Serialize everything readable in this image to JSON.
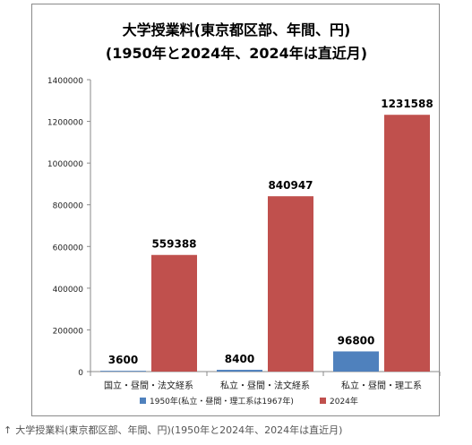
{
  "chart_data": {
    "type": "bar",
    "title": "大学授業料(東京都区部、年間、円)",
    "subtitle": "(1950年と2024年、2024年は直近月)",
    "categories": [
      "国立・昼間・法文経系",
      "私立・昼間・法文経系",
      "私立・昼間・理工系"
    ],
    "series": [
      {
        "name": "1950年(私立・昼間・理工系は1967年)",
        "values": [
          3600,
          8400,
          96800
        ],
        "color": "#4f81bd"
      },
      {
        "name": "2024年",
        "values": [
          559388,
          840947,
          1231588
        ],
        "color": "#c0504d"
      }
    ],
    "ylim": [
      0,
      1400000
    ],
    "yticks": [
      0,
      200000,
      400000,
      600000,
      800000,
      1000000,
      1200000,
      1400000
    ],
    "xlabel": "",
    "ylabel": "",
    "grid": false,
    "legend_position": "bottom",
    "data_labels": true
  },
  "caption": {
    "arrow": "↑",
    "text": "大学授業料(東京都区部、年間、円)(1950年と2024年、2024年は直近月)"
  }
}
